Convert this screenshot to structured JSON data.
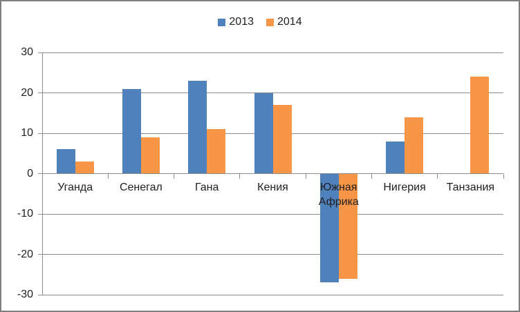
{
  "frame": {
    "background": "#FFFFFF",
    "border_color": "#7F7F7F",
    "axis_color": "#8A8A8A",
    "text_color": "#1F1F1F"
  },
  "legend": {
    "items": [
      {
        "label": "2013",
        "color": "#4F81BD"
      },
      {
        "label": "2014",
        "color": "#F79646"
      }
    ]
  },
  "chart_data": {
    "type": "bar",
    "title": "",
    "categories": [
      "Уганда",
      "Сенегал",
      "Гана",
      "Кения",
      "Южная Африка",
      "Нигерия",
      "Танзания"
    ],
    "series": [
      {
        "name": "2013",
        "color": "#4F81BD",
        "values": [
          6,
          21,
          23,
          20,
          -27,
          8,
          null
        ]
      },
      {
        "name": "2014",
        "color": "#F79646",
        "values": [
          3,
          9,
          11,
          17,
          -26,
          14,
          24
        ]
      }
    ],
    "ylim": [
      -30,
      30
    ],
    "yticks": [
      30,
      20,
      10,
      0,
      -10,
      -20,
      -30
    ],
    "grid": true,
    "legend_position": "top"
  }
}
